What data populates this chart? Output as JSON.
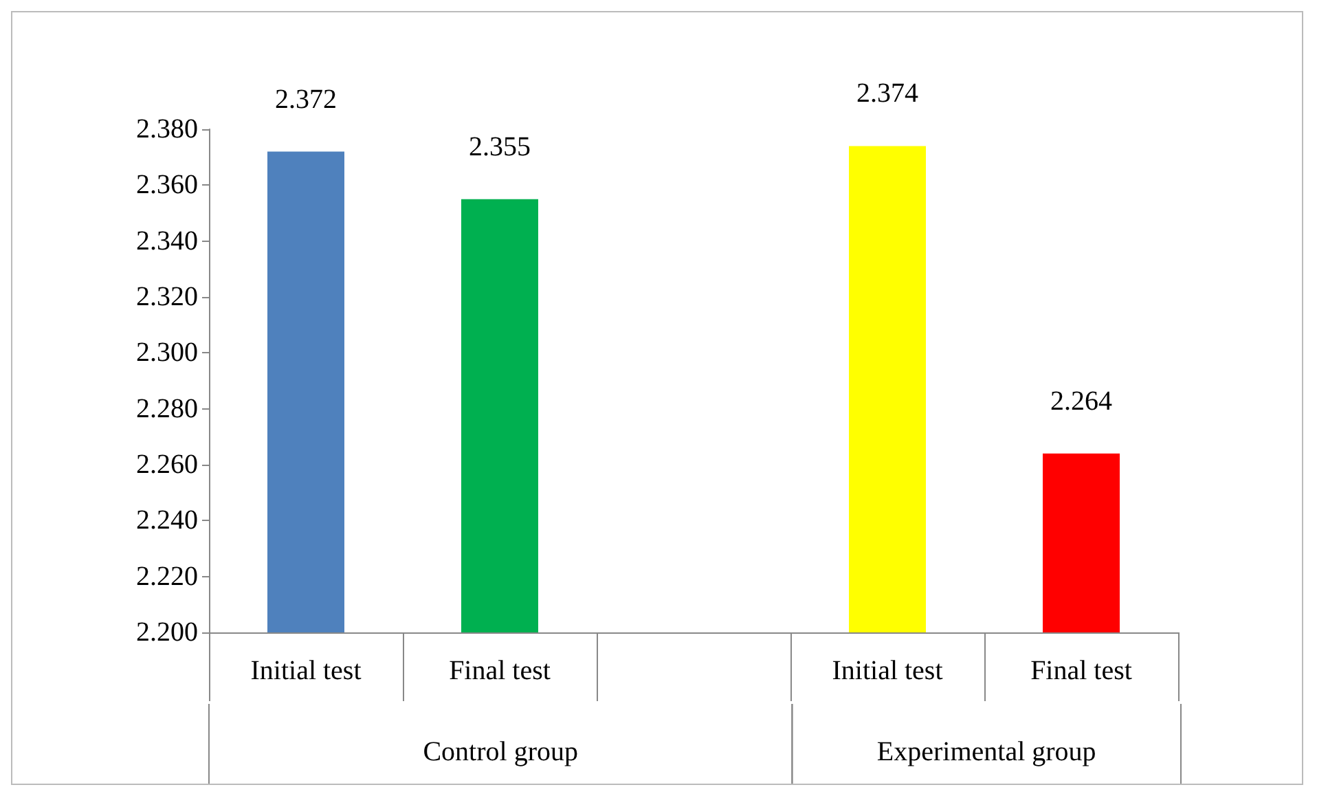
{
  "chart_data": {
    "type": "bar",
    "categories": [
      "Initial test",
      "Final test",
      null,
      "Initial test",
      "Final test"
    ],
    "values": [
      2.372,
      2.355,
      null,
      2.374,
      2.264
    ],
    "colors": [
      "#4f81bd",
      "#00b050",
      "#ffffff",
      "#ffff00",
      "#ff0000"
    ],
    "ylim": [
      2.2,
      2.38
    ],
    "yticks": [
      {
        "value": 2.2,
        "label": "2.200"
      },
      {
        "value": 2.22,
        "label": "2.220"
      },
      {
        "value": 2.24,
        "label": "2.240"
      },
      {
        "value": 2.26,
        "label": "2.260"
      },
      {
        "value": 2.28,
        "label": "2.280"
      },
      {
        "value": 2.3,
        "label": "2.300"
      },
      {
        "value": 2.32,
        "label": "2.320"
      },
      {
        "value": 2.34,
        "label": "2.340"
      },
      {
        "value": 2.36,
        "label": "2.360"
      },
      {
        "value": 2.38,
        "label": "2.380"
      }
    ],
    "annotations": [
      "Control group",
      "Experimental group"
    ],
    "data_labels": true
  }
}
